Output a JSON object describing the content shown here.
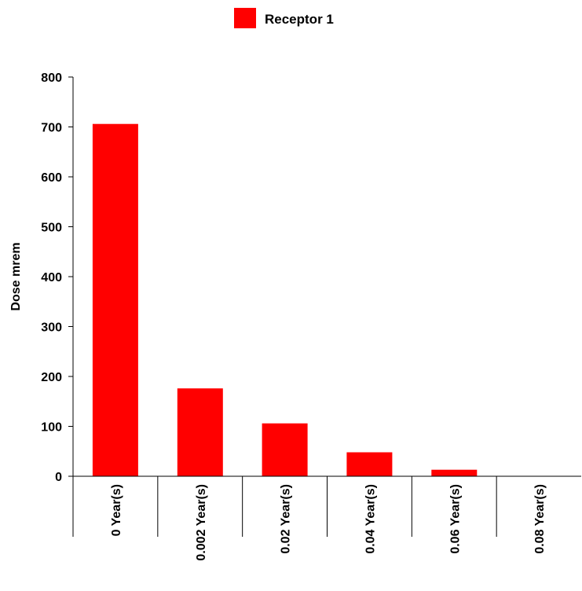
{
  "chart_data": {
    "type": "bar",
    "categories": [
      "0 Year(s)",
      "0.002 Year(s)",
      "0.02 Year(s)",
      "0.04 Year(s)",
      "0.06 Year(s)",
      "0.08 Year(s)"
    ],
    "series": [
      {
        "name": "Receptor 1",
        "values": [
          706,
          176,
          106,
          48,
          13,
          0
        ],
        "color": "#ff0000"
      }
    ],
    "xlabel": "",
    "ylabel": "Dose mrem",
    "ylim": [
      0,
      800
    ],
    "yticks": [
      0,
      100,
      200,
      300,
      400,
      500,
      600,
      700,
      800
    ],
    "grid": false,
    "legend_position": "top-center",
    "colors": {
      "bar": "#ff0000",
      "axis": "#000000",
      "background": "#ffffff"
    }
  }
}
